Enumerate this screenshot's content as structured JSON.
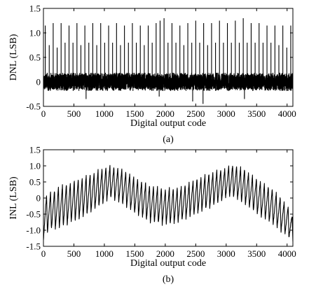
{
  "chart_data": [
    {
      "panel": "a",
      "type": "line",
      "caption": "(a)",
      "xlabel": "Digital output code",
      "ylabel": "DNL (LSB)",
      "xlim": [
        0,
        4095
      ],
      "ylim": [
        -0.5,
        1.5
      ],
      "xticks": [
        0,
        500,
        1000,
        1500,
        2000,
        2500,
        3000,
        3500,
        4000
      ],
      "yticks": [
        -0.5,
        0,
        0.5,
        1.0,
        1.5
      ],
      "ytick_labels": [
        "-0.5",
        "0",
        "0.5",
        "1.0",
        "1.5"
      ],
      "grid": false,
      "series": [
        {
          "noise_band": [
            -0.18,
            0.18
          ],
          "spikes": [
            {
              "x": 30,
              "y": 1.15
            },
            {
              "x": 95,
              "y": 0.75
            },
            {
              "x": 160,
              "y": 1.2
            },
            {
              "x": 225,
              "y": 0.7
            },
            {
              "x": 290,
              "y": 1.2
            },
            {
              "x": 355,
              "y": 0.8
            },
            {
              "x": 420,
              "y": 1.15
            },
            {
              "x": 485,
              "y": 0.8
            },
            {
              "x": 550,
              "y": 1.2
            },
            {
              "x": 615,
              "y": 0.75
            },
            {
              "x": 680,
              "y": 1.15
            },
            {
              "x": 745,
              "y": 0.8
            },
            {
              "x": 810,
              "y": 1.2
            },
            {
              "x": 875,
              "y": 0.75
            },
            {
              "x": 940,
              "y": 1.2
            },
            {
              "x": 1005,
              "y": 0.8
            },
            {
              "x": 1070,
              "y": 1.15
            },
            {
              "x": 1135,
              "y": 0.8
            },
            {
              "x": 1200,
              "y": 1.2
            },
            {
              "x": 1265,
              "y": 0.75
            },
            {
              "x": 1330,
              "y": 1.15
            },
            {
              "x": 1395,
              "y": 0.8
            },
            {
              "x": 1460,
              "y": 1.2
            },
            {
              "x": 1525,
              "y": 0.8
            },
            {
              "x": 1590,
              "y": 1.15
            },
            {
              "x": 1655,
              "y": 0.75
            },
            {
              "x": 1720,
              "y": 1.15
            },
            {
              "x": 1785,
              "y": 0.8
            },
            {
              "x": 1850,
              "y": 1.2
            },
            {
              "x": 1915,
              "y": 1.25
            },
            {
              "x": 1980,
              "y": 1.3
            },
            {
              "x": 2045,
              "y": 0.8
            },
            {
              "x": 2110,
              "y": 1.2
            },
            {
              "x": 2175,
              "y": 0.8
            },
            {
              "x": 2240,
              "y": 1.15
            },
            {
              "x": 2305,
              "y": 0.75
            },
            {
              "x": 2370,
              "y": 1.2
            },
            {
              "x": 2435,
              "y": 0.8
            },
            {
              "x": 2500,
              "y": 1.25
            },
            {
              "x": 2565,
              "y": 0.8
            },
            {
              "x": 2630,
              "y": 1.2
            },
            {
              "x": 2695,
              "y": 0.75
            },
            {
              "x": 2760,
              "y": 1.2
            },
            {
              "x": 2825,
              "y": 0.8
            },
            {
              "x": 2890,
              "y": 1.25
            },
            {
              "x": 2955,
              "y": 0.8
            },
            {
              "x": 3020,
              "y": 1.2
            },
            {
              "x": 3085,
              "y": 0.8
            },
            {
              "x": 3150,
              "y": 1.25
            },
            {
              "x": 3215,
              "y": 0.8
            },
            {
              "x": 3280,
              "y": 1.3
            },
            {
              "x": 3345,
              "y": 0.8
            },
            {
              "x": 3410,
              "y": 1.2
            },
            {
              "x": 3475,
              "y": 0.8
            },
            {
              "x": 3540,
              "y": 1.2
            },
            {
              "x": 3605,
              "y": 0.8
            },
            {
              "x": 3670,
              "y": 1.15
            },
            {
              "x": 3735,
              "y": 0.8
            },
            {
              "x": 3800,
              "y": 1.15
            },
            {
              "x": 3865,
              "y": 0.75
            },
            {
              "x": 3930,
              "y": 1.15
            },
            {
              "x": 3995,
              "y": 0.7
            },
            {
              "x": 4060,
              "y": 1.15
            }
          ],
          "dips": [
            {
              "x": 1900,
              "y": -0.3
            },
            {
              "x": 2450,
              "y": -0.4
            },
            {
              "x": 2620,
              "y": -0.45
            },
            {
              "x": 700,
              "y": -0.35
            },
            {
              "x": 3300,
              "y": -0.35
            }
          ]
        }
      ]
    },
    {
      "panel": "b",
      "type": "line",
      "caption": "(b)",
      "xlabel": "Digital output code",
      "ylabel": "INL (LSB)",
      "xlim": [
        0,
        4095
      ],
      "ylim": [
        -1.5,
        1.5
      ],
      "xticks": [
        0,
        500,
        1000,
        1500,
        2000,
        2500,
        3000,
        3500,
        4000
      ],
      "yticks": [
        -1.5,
        -1.0,
        -0.5,
        0,
        0.5,
        1.0,
        1.5
      ],
      "ytick_labels": [
        "-1.5",
        "-1.0",
        "-0.5",
        "0",
        "0.5",
        "1.0",
        "1.5"
      ],
      "grid": false,
      "series": [
        {
          "oscillation_period": 65,
          "envelope_upper": [
            [
              0,
              0.05
            ],
            [
              250,
              0.35
            ],
            [
              500,
              0.55
            ],
            [
              750,
              0.75
            ],
            [
              1000,
              0.95
            ],
            [
              1100,
              1.0
            ],
            [
              1300,
              0.9
            ],
            [
              1500,
              0.65
            ],
            [
              1750,
              0.4
            ],
            [
              2000,
              0.3
            ],
            [
              2250,
              0.35
            ],
            [
              2500,
              0.6
            ],
            [
              2750,
              0.8
            ],
            [
              3000,
              0.95
            ],
            [
              3100,
              1.05
            ],
            [
              3300,
              0.9
            ],
            [
              3500,
              0.6
            ],
            [
              3750,
              0.3
            ],
            [
              4000,
              -0.2
            ],
            [
              4095,
              -0.6
            ]
          ],
          "envelope_lower": [
            [
              0,
              -1.3
            ],
            [
              100,
              -1.0
            ],
            [
              250,
              -0.95
            ],
            [
              500,
              -0.75
            ],
            [
              750,
              -0.5
            ],
            [
              1000,
              -0.15
            ],
            [
              1100,
              0.0
            ],
            [
              1300,
              -0.2
            ],
            [
              1500,
              -0.5
            ],
            [
              1750,
              -0.75
            ],
            [
              2000,
              -0.85
            ],
            [
              2250,
              -0.75
            ],
            [
              2500,
              -0.5
            ],
            [
              2750,
              -0.3
            ],
            [
              3000,
              0.0
            ],
            [
              3100,
              0.05
            ],
            [
              3300,
              -0.2
            ],
            [
              3500,
              -0.5
            ],
            [
              3750,
              -0.8
            ],
            [
              4000,
              -1.2
            ],
            [
              4095,
              -1.35
            ]
          ]
        }
      ]
    }
  ]
}
